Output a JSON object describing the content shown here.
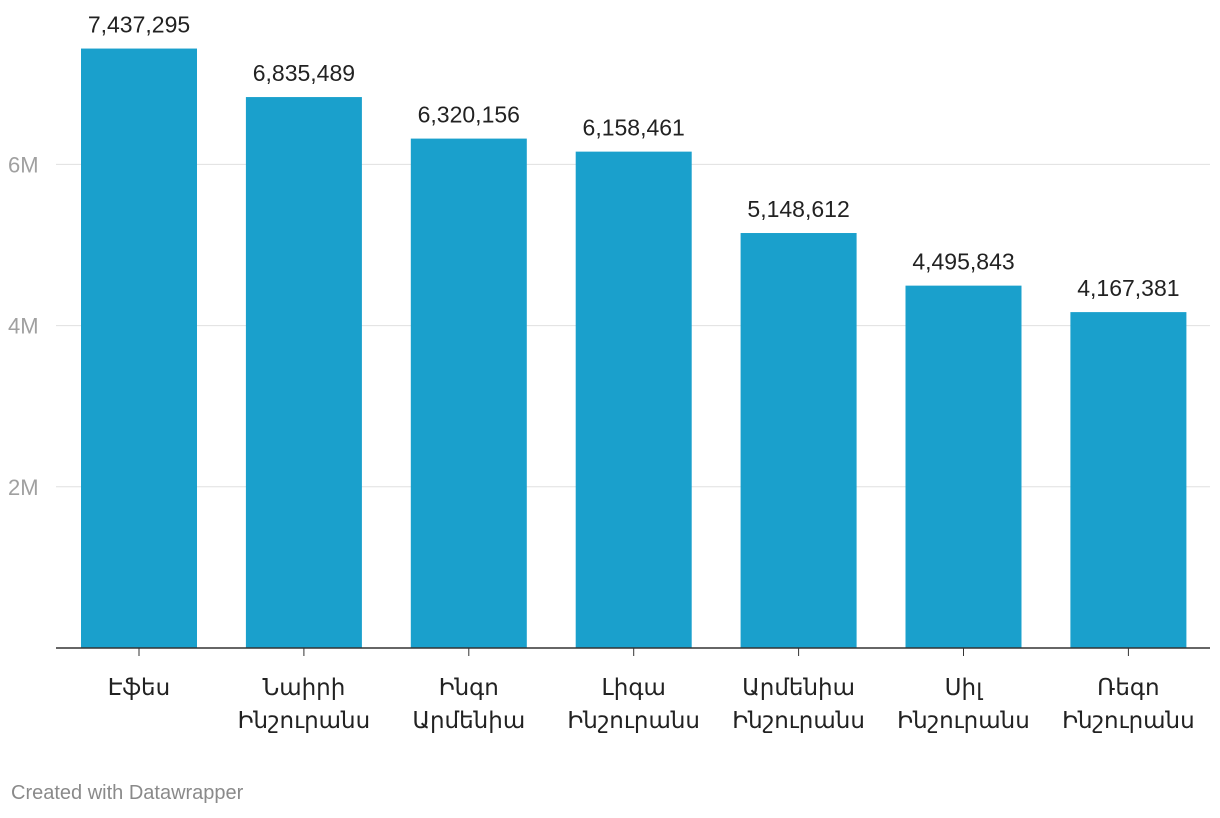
{
  "chart_data": {
    "type": "bar",
    "categories": [
      [
        "Էֆես"
      ],
      [
        "Նաիրի",
        "Ինշուրանս"
      ],
      [
        "Ինգո",
        "Արմենիա"
      ],
      [
        "Լիգա",
        "Ինշուրանս"
      ],
      [
        "Արմենիա",
        "Ինշուրանս"
      ],
      [
        "Սիլ",
        "Ինշուրանս"
      ],
      [
        "Ռեգո",
        "Ինշուրանս"
      ]
    ],
    "values": [
      7437295,
      6835489,
      6320156,
      6158461,
      5148612,
      4495843,
      4167381
    ],
    "value_labels": [
      "7,437,295",
      "6,835,489",
      "6,320,156",
      "6,158,461",
      "5,148,612",
      "4,495,843",
      "4,167,381"
    ],
    "y_ticks": [
      2000000,
      4000000,
      6000000
    ],
    "y_tick_labels": [
      "2M",
      "4M",
      "6M"
    ],
    "ylim": [
      0,
      8000000
    ],
    "grid": true,
    "colors": {
      "bar": "#1aa0cc",
      "grid": "#e0e0e0",
      "axis": "#333333",
      "tick_label": "#a0a0a0",
      "text": "#222222"
    }
  },
  "footer": {
    "credit": "Created with Datawrapper"
  }
}
